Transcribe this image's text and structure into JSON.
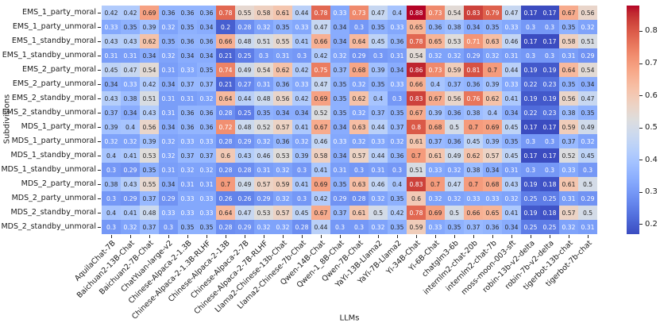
{
  "chart_data": {
    "type": "heatmap",
    "title": "",
    "xlabel": "LLMs",
    "ylabel": "Subdivisions",
    "colormap": "coolwarm",
    "vmin": 0.17,
    "vmax": 0.88,
    "legend_position": "right-colorbar",
    "colorbar_ticks": [
      0.2,
      0.3,
      0.4,
      0.5,
      0.6,
      0.7,
      0.8
    ],
    "rows": [
      "EMS_1_party_moral",
      "EMS_1_party_unmoral",
      "EMS_1_standby_moral",
      "EMS_1_standby_unmoral",
      "EMS_2_party_moral",
      "EMS_2_party_unmoral",
      "EMS_2_standby_moral",
      "EMS_2_standby_unmoral",
      "MDS_1_party_moral",
      "MDS_1_party_unmoral",
      "MDS_1_standby_moral",
      "MDS_1_standby_unmoral",
      "MDS_2_party_moral",
      "MDS_2_party_unmoral",
      "MDS_2_standby_moral",
      "MDS_2_standby_unmoral"
    ],
    "columns": [
      "AquilaChat-7B",
      "Baichuan2-13B-Chat",
      "Baichuan2-7B-Chat",
      "ChatYuan-large-v2",
      "Chinese-Alpaca-2-1.3B",
      "Chinese-Alpaca-2-1.3B-RLHF",
      "Chinese-Alpaca-2-13B",
      "Chinese-Alpaca-2-7B",
      "Chinese-Alpaca-2-7B-RLHF",
      "Llama2-Chinese-13b-Chat",
      "Llama2-Chinese-7b-Chat",
      "Qwen-14B-Chat",
      "Qwen-1_8B-Chat",
      "Qwen-7B-Chat",
      "YaYi-13B-Llama2",
      "YaYi-7B-Llama2",
      "Yi-34B-Chat",
      "Yi-6B-Chat",
      "chatglm3-6b",
      "internlm2-chat-20b",
      "internlm2-chat-7b",
      "moss-moon-003-sft",
      "robin-13b-v2-delta",
      "robin-7b-v2-delta",
      "tigerbot-13b-chat",
      "tigerbot-7b-chat"
    ],
    "values": [
      [
        0.42,
        0.42,
        0.69,
        0.36,
        0.36,
        0.36,
        0.78,
        0.55,
        0.58,
        0.61,
        0.44,
        0.78,
        0.33,
        0.73,
        0.47,
        0.4,
        0.88,
        0.73,
        0.54,
        0.83,
        0.79,
        0.47,
        0.17,
        0.17,
        0.67,
        0.56
      ],
      [
        0.33,
        0.35,
        0.39,
        0.32,
        0.35,
        0.34,
        0.2,
        0.28,
        0.32,
        0.35,
        0.33,
        0.47,
        0.34,
        0.3,
        0.35,
        0.33,
        0.65,
        0.36,
        0.38,
        0.34,
        0.35,
        0.33,
        0.3,
        0.3,
        0.35,
        0.32
      ],
      [
        0.43,
        0.43,
        0.62,
        0.35,
        0.36,
        0.36,
        0.66,
        0.48,
        0.51,
        0.55,
        0.41,
        0.66,
        0.34,
        0.64,
        0.45,
        0.36,
        0.78,
        0.65,
        0.53,
        0.71,
        0.63,
        0.46,
        0.17,
        0.17,
        0.58,
        0.51
      ],
      [
        0.31,
        0.31,
        0.34,
        0.32,
        0.34,
        0.34,
        0.21,
        0.25,
        0.3,
        0.31,
        0.3,
        0.42,
        0.32,
        0.29,
        0.3,
        0.31,
        0.54,
        0.32,
        0.32,
        0.29,
        0.32,
        0.31,
        0.3,
        0.3,
        0.31,
        0.29
      ],
      [
        0.45,
        0.47,
        0.54,
        0.31,
        0.33,
        0.35,
        0.74,
        0.49,
        0.54,
        0.62,
        0.42,
        0.75,
        0.37,
        0.68,
        0.39,
        0.34,
        0.86,
        0.73,
        0.59,
        0.81,
        0.7,
        0.44,
        0.19,
        0.19,
        0.64,
        0.54
      ],
      [
        0.34,
        0.33,
        0.42,
        0.34,
        0.37,
        0.37,
        0.21,
        0.27,
        0.31,
        0.36,
        0.33,
        0.47,
        0.35,
        0.32,
        0.35,
        0.33,
        0.66,
        0.4,
        0.37,
        0.36,
        0.39,
        0.33,
        0.22,
        0.23,
        0.35,
        0.34
      ],
      [
        0.43,
        0.38,
        0.51,
        0.31,
        0.31,
        0.32,
        0.64,
        0.44,
        0.48,
        0.56,
        0.42,
        0.69,
        0.35,
        0.62,
        0.4,
        0.3,
        0.83,
        0.67,
        0.56,
        0.76,
        0.62,
        0.41,
        0.19,
        0.19,
        0.56,
        0.47
      ],
      [
        0.37,
        0.34,
        0.43,
        0.31,
        0.36,
        0.36,
        0.28,
        0.25,
        0.35,
        0.34,
        0.34,
        0.52,
        0.35,
        0.32,
        0.37,
        0.35,
        0.67,
        0.39,
        0.36,
        0.38,
        0.4,
        0.34,
        0.22,
        0.23,
        0.38,
        0.35
      ],
      [
        0.39,
        0.4,
        0.56,
        0.34,
        0.36,
        0.36,
        0.72,
        0.48,
        0.52,
        0.57,
        0.41,
        0.67,
        0.34,
        0.63,
        0.44,
        0.37,
        0.8,
        0.68,
        0.5,
        0.7,
        0.69,
        0.45,
        0.17,
        0.17,
        0.59,
        0.49
      ],
      [
        0.32,
        0.32,
        0.39,
        0.32,
        0.33,
        0.33,
        0.28,
        0.29,
        0.32,
        0.36,
        0.32,
        0.46,
        0.33,
        0.32,
        0.33,
        0.32,
        0.61,
        0.37,
        0.36,
        0.45,
        0.39,
        0.35,
        0.3,
        0.3,
        0.37,
        0.32
      ],
      [
        0.4,
        0.41,
        0.53,
        0.32,
        0.37,
        0.37,
        0.6,
        0.43,
        0.46,
        0.53,
        0.39,
        0.58,
        0.34,
        0.57,
        0.44,
        0.36,
        0.7,
        0.61,
        0.49,
        0.62,
        0.57,
        0.45,
        0.17,
        0.17,
        0.52,
        0.45
      ],
      [
        0.3,
        0.29,
        0.35,
        0.31,
        0.32,
        0.32,
        0.28,
        0.28,
        0.31,
        0.32,
        0.3,
        0.41,
        0.31,
        0.3,
        0.31,
        0.3,
        0.51,
        0.33,
        0.32,
        0.38,
        0.34,
        0.31,
        0.3,
        0.3,
        0.33,
        0.3
      ],
      [
        0.38,
        0.43,
        0.55,
        0.34,
        0.31,
        0.31,
        0.7,
        0.49,
        0.57,
        0.59,
        0.41,
        0.69,
        0.35,
        0.63,
        0.46,
        0.4,
        0.83,
        0.7,
        0.47,
        0.7,
        0.68,
        0.43,
        0.19,
        0.18,
        0.61,
        0.5
      ],
      [
        0.3,
        0.29,
        0.37,
        0.29,
        0.33,
        0.33,
        0.26,
        0.26,
        0.29,
        0.32,
        0.3,
        0.42,
        0.29,
        0.28,
        0.32,
        0.35,
        0.6,
        0.32,
        0.32,
        0.33,
        0.33,
        0.32,
        0.25,
        0.25,
        0.31,
        0.29
      ],
      [
        0.4,
        0.41,
        0.48,
        0.33,
        0.33,
        0.33,
        0.64,
        0.47,
        0.53,
        0.57,
        0.45,
        0.67,
        0.37,
        0.61,
        0.5,
        0.42,
        0.78,
        0.69,
        0.5,
        0.66,
        0.65,
        0.41,
        0.19,
        0.18,
        0.57,
        0.5
      ],
      [
        0.3,
        0.32,
        0.37,
        0.3,
        0.35,
        0.35,
        0.28,
        0.29,
        0.32,
        0.32,
        0.28,
        0.44,
        0.3,
        0.3,
        0.32,
        0.35,
        0.59,
        0.33,
        0.35,
        0.37,
        0.36,
        0.34,
        0.25,
        0.25,
        0.32,
        0.31
      ]
    ],
    "annotation_text_rule": {
      "white_if_value_lte": 0.33,
      "white_if_value_gte": 0.71,
      "dark_color": "#262626",
      "white_color": "#ffffff"
    },
    "accent_colors": {
      "cool_end": "#3b4cc0",
      "mid": "#dddddd",
      "warm_end": "#b40426"
    }
  }
}
